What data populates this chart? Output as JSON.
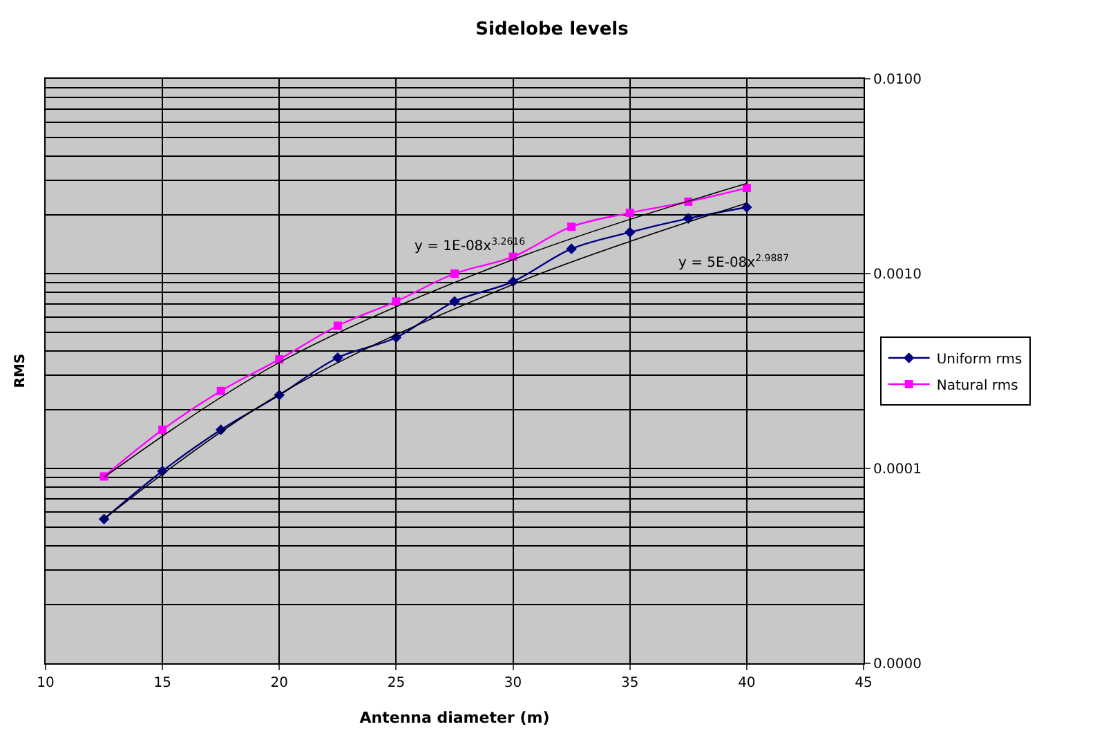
{
  "chart_data": {
    "type": "line",
    "title": "Sidelobe levels",
    "xlabel": "Antenna diameter (m)",
    "ylabel": "RMS",
    "x": [
      12.5,
      15,
      17.5,
      20,
      22.5,
      25,
      27.5,
      30,
      32.5,
      35,
      37.5,
      40
    ],
    "series": [
      {
        "name": "Uniform rms",
        "color": "#000080",
        "marker": "diamond",
        "values": [
          5.5e-05,
          9.7e-05,
          0.000158,
          0.000238,
          0.00037,
          0.00047,
          0.00072,
          0.00091,
          0.00134,
          0.00163,
          0.00192,
          0.00219
        ]
      },
      {
        "name": "Natural rms",
        "color": "#ff00ff",
        "marker": "square",
        "values": [
          9.1e-05,
          0.000158,
          0.00025,
          0.000363,
          0.00054,
          0.00072,
          0.001,
          0.00122,
          0.00174,
          0.00205,
          0.00234,
          0.00275
        ]
      },
      {
        "type": "line",
        "color": "#000000",
        "marker": "none",
        "x": [
          12.5,
          20,
          30,
          40
        ],
        "values": [
          9e-05,
          0.00035,
          0.00118,
          0.0029
        ]
      },
      {
        "type": "line",
        "color": "#000000",
        "marker": "none",
        "x": [
          12.5,
          20,
          30,
          40
        ],
        "values": [
          5.5e-05,
          0.00024,
          0.00088,
          0.0023
        ]
      }
    ],
    "log": "y",
    "xlim": [
      10,
      45
    ],
    "xticks": [
      10,
      15,
      20,
      25,
      30,
      35,
      40,
      45
    ],
    "ylim": [
      1e-05,
      0.01
    ],
    "yticks": [
      {
        "value": 1e-05,
        "label": "0.0000"
      },
      {
        "value": 0.0001,
        "label": "0.0001"
      },
      {
        "value": 0.001,
        "label": "0.0010"
      },
      {
        "value": 0.01,
        "label": "0.0100"
      }
    ],
    "grid": true,
    "legend": "right",
    "line_style": "solid",
    "annotations": [
      "y = 1E-08x$^{3.2616}$",
      "y = 5E-08x$^{2.9887}$"
    ]
  }
}
